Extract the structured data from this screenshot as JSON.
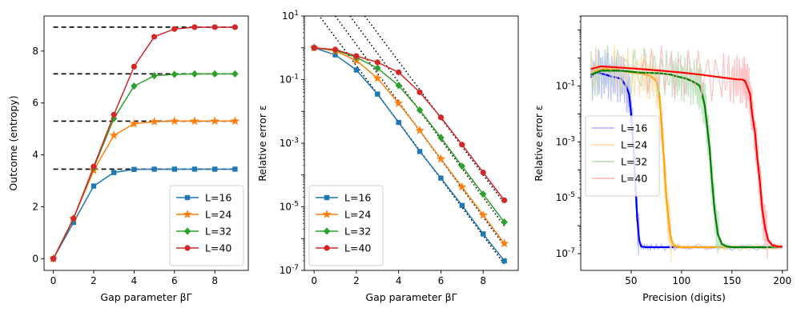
{
  "chart_data": [
    {
      "type": "line",
      "title": "",
      "xlabel": "Gap parameter  βΓ",
      "ylabel": "Outcome (entropy)",
      "xlim": [
        -0.46,
        9.66
      ],
      "ylim": [
        -0.45,
        9.35
      ],
      "yscale": "linear",
      "xticks": [
        0,
        2,
        4,
        6,
        8
      ],
      "yticks": [
        0,
        2,
        4,
        6,
        8
      ],
      "grid": false,
      "legend_position": "lower-right",
      "x": [
        0,
        1,
        2,
        3,
        4,
        5,
        6,
        7,
        8,
        9
      ],
      "series": [
        {
          "name": "L=16",
          "color": "#1f77b4",
          "marker": "square",
          "values": [
            0,
            1.4,
            2.8,
            3.32,
            3.44,
            3.45,
            3.45,
            3.45,
            3.45,
            3.45
          ]
        },
        {
          "name": "L=24",
          "color": "#ff7f0e",
          "marker": "star",
          "values": [
            0,
            1.55,
            3.4,
            4.75,
            5.2,
            5.28,
            5.3,
            5.3,
            5.3,
            5.3
          ]
        },
        {
          "name": "L=32",
          "color": "#2ca02c",
          "marker": "diamond",
          "values": [
            0,
            1.55,
            3.5,
            5.4,
            6.65,
            7.05,
            7.1,
            7.12,
            7.12,
            7.12
          ]
        },
        {
          "name": "L=40",
          "color": "#d62728",
          "marker": "circle",
          "values": [
            0,
            1.55,
            3.55,
            5.55,
            7.4,
            8.55,
            8.85,
            8.92,
            8.92,
            8.92
          ]
        }
      ],
      "reference_lines": [
        {
          "y": 3.45,
          "style": "dashed",
          "color": "#000000"
        },
        {
          "y": 5.3,
          "style": "dashed",
          "color": "#000000"
        },
        {
          "y": 7.12,
          "style": "dashed",
          "color": "#000000"
        },
        {
          "y": 8.92,
          "style": "dashed",
          "color": "#000000"
        }
      ]
    },
    {
      "type": "line",
      "title": "",
      "xlabel": "Gap parameter βΓ",
      "ylabel": "Relative error ε",
      "xlim": [
        -0.46,
        9.66
      ],
      "ylim_log10": [
        -7,
        1
      ],
      "yscale": "log",
      "xticks": [
        0,
        2,
        4,
        6,
        8
      ],
      "ytick_exponents": [
        -7,
        -5,
        -3,
        -1,
        1
      ],
      "grid": false,
      "legend_position": "lower-left",
      "x": [
        0,
        1,
        2,
        3,
        4,
        5,
        6,
        7,
        8,
        9
      ],
      "series": [
        {
          "name": "L=16",
          "color": "#1f77b4",
          "marker": "square",
          "values": [
            1.0,
            0.6,
            0.2,
            0.035,
            0.0045,
            0.00055,
            8e-05,
            1.1e-05,
            1.4e-06,
            2e-07
          ]
        },
        {
          "name": "L=24",
          "color": "#ff7f0e",
          "marker": "star",
          "values": [
            1.0,
            0.8,
            0.4,
            0.11,
            0.018,
            0.0025,
            0.00032,
            4.2e-05,
            5.5e-06,
            7e-07
          ]
        },
        {
          "name": "L=32",
          "color": "#2ca02c",
          "marker": "diamond",
          "values": [
            1.0,
            0.85,
            0.5,
            0.23,
            0.065,
            0.011,
            0.0015,
            0.00019,
            2.5e-05,
            3.3e-06
          ]
        },
        {
          "name": "L=40",
          "color": "#d62728",
          "marker": "circle",
          "values": [
            1.0,
            0.88,
            0.55,
            0.35,
            0.17,
            0.04,
            0.0065,
            0.0009,
            0.00012,
            1.6e-05
          ]
        }
      ],
      "reference_lines": [
        {
          "style": "dotted",
          "color": "#000000",
          "x": [
            0.3,
            9.0
          ],
          "y": [
            9.0,
            1.6e-07
          ]
        },
        {
          "style": "dotted",
          "color": "#000000",
          "x": [
            1.0,
            9.0
          ],
          "y": [
            10.0,
            6e-07
          ]
        },
        {
          "style": "dotted",
          "color": "#000000",
          "x": [
            1.7,
            9.0
          ],
          "y": [
            10.0,
            2.5e-06
          ]
        },
        {
          "style": "dotted",
          "color": "#000000",
          "x": [
            2.4,
            9.0
          ],
          "y": [
            10.0,
            1.3e-05
          ]
        }
      ]
    },
    {
      "type": "line",
      "title": "",
      "xlabel": "Precision (digits)",
      "ylabel": "Relative error ε",
      "xlim": [
        0,
        205
      ],
      "ylim_log10": [
        -7.6,
        1.5
      ],
      "yscale": "log",
      "xticks": [
        50,
        100,
        150,
        200
      ],
      "ytick_exponents": [
        -7,
        -5,
        -3,
        -1
      ],
      "grid": false,
      "legend_position": "center-left",
      "series": [
        {
          "name": "L=16",
          "color": "#0000ff",
          "raw_color": "#aab0ff",
          "x": [
            10,
            15,
            20,
            25,
            30,
            35,
            40,
            45,
            48,
            50,
            52,
            54,
            56,
            58,
            60,
            65,
            70,
            80,
            100,
            150,
            200
          ],
          "values": [
            0.2,
            0.3,
            0.28,
            0.25,
            0.22,
            0.2,
            0.18,
            0.1,
            0.05,
            0.01,
            0.001,
            5e-05,
            2e-06,
            3e-07,
            1.8e-07,
            1.7e-07,
            1.7e-07,
            1.7e-07,
            1.7e-07,
            1.7e-07,
            1.7e-07
          ]
        },
        {
          "name": "L=24",
          "color": "#ffa500",
          "raw_color": "#ffd9a0",
          "x": [
            10,
            20,
            30,
            40,
            50,
            60,
            65,
            70,
            75,
            78,
            80,
            82,
            84,
            86,
            88,
            90,
            92,
            95,
            100,
            110,
            150,
            200
          ],
          "values": [
            0.3,
            0.4,
            0.4,
            0.35,
            0.3,
            0.28,
            0.25,
            0.22,
            0.15,
            0.05,
            0.005,
            0.0005,
            3e-05,
            4e-06,
            8e-07,
            3e-07,
            2e-07,
            1.8e-07,
            1.7e-07,
            1.7e-07,
            1.7e-07,
            1.7e-07
          ]
        },
        {
          "name": "L=32",
          "color": "#008000",
          "raw_color": "#b2dbb2",
          "x": [
            10,
            20,
            40,
            60,
            80,
            90,
            95,
            100,
            105,
            110,
            115,
            118,
            120,
            123,
            125,
            128,
            130,
            133,
            136,
            140,
            145,
            150,
            200
          ],
          "values": [
            0.25,
            0.35,
            0.35,
            0.3,
            0.28,
            0.25,
            0.22,
            0.2,
            0.18,
            0.15,
            0.12,
            0.1,
            0.06,
            0.02,
            0.005,
            0.0005,
            5e-05,
            3e-06,
            5e-07,
            2.2e-07,
            1.8e-07,
            1.7e-07,
            1.7e-07
          ]
        },
        {
          "name": "L=40",
          "color": "#ff0000",
          "raw_color": "#ffb2b2",
          "x": [
            10,
            20,
            40,
            60,
            80,
            100,
            120,
            140,
            150,
            155,
            160,
            163,
            165,
            168,
            170,
            173,
            175,
            178,
            180,
            183,
            186,
            190,
            195,
            200
          ],
          "values": [
            0.4,
            0.5,
            0.45,
            0.4,
            0.35,
            0.3,
            0.25,
            0.2,
            0.18,
            0.17,
            0.17,
            0.15,
            0.1,
            0.05,
            0.01,
            0.002,
            0.0003,
            3e-05,
            4e-06,
            8e-07,
            3e-07,
            2e-07,
            1.8e-07,
            1.8e-07
          ]
        }
      ]
    }
  ]
}
